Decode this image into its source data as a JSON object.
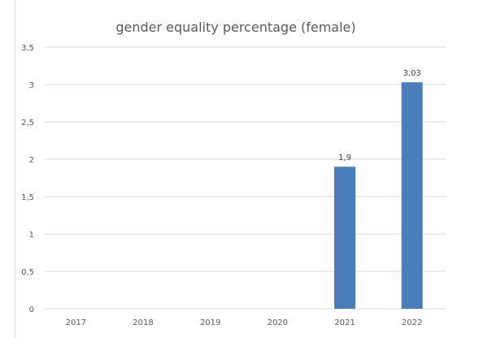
{
  "chart_data": {
    "type": "bar",
    "title": "gender equality percentage (female)",
    "categories": [
      "2017",
      "2018",
      "2019",
      "2020",
      "2021",
      "2022"
    ],
    "values": [
      0,
      0,
      0,
      0,
      1.9,
      3.03
    ],
    "data_labels": [
      "",
      "",
      "",
      "",
      "1,9",
      "3,03"
    ],
    "y_ticks": [
      0,
      0.5,
      1,
      1.5,
      2,
      2.5,
      3,
      3.5
    ],
    "y_tick_labels": [
      "0",
      "0,5",
      "1",
      "1,5",
      "2",
      "2,5",
      "3",
      "3,5"
    ],
    "xlabel": "",
    "ylabel": "",
    "ylim": [
      0,
      3.5
    ],
    "grid": true,
    "legend": "none",
    "colors": {
      "bar": "#4a7ebb",
      "grid": "#d9d9d9",
      "text": "#595959"
    }
  }
}
